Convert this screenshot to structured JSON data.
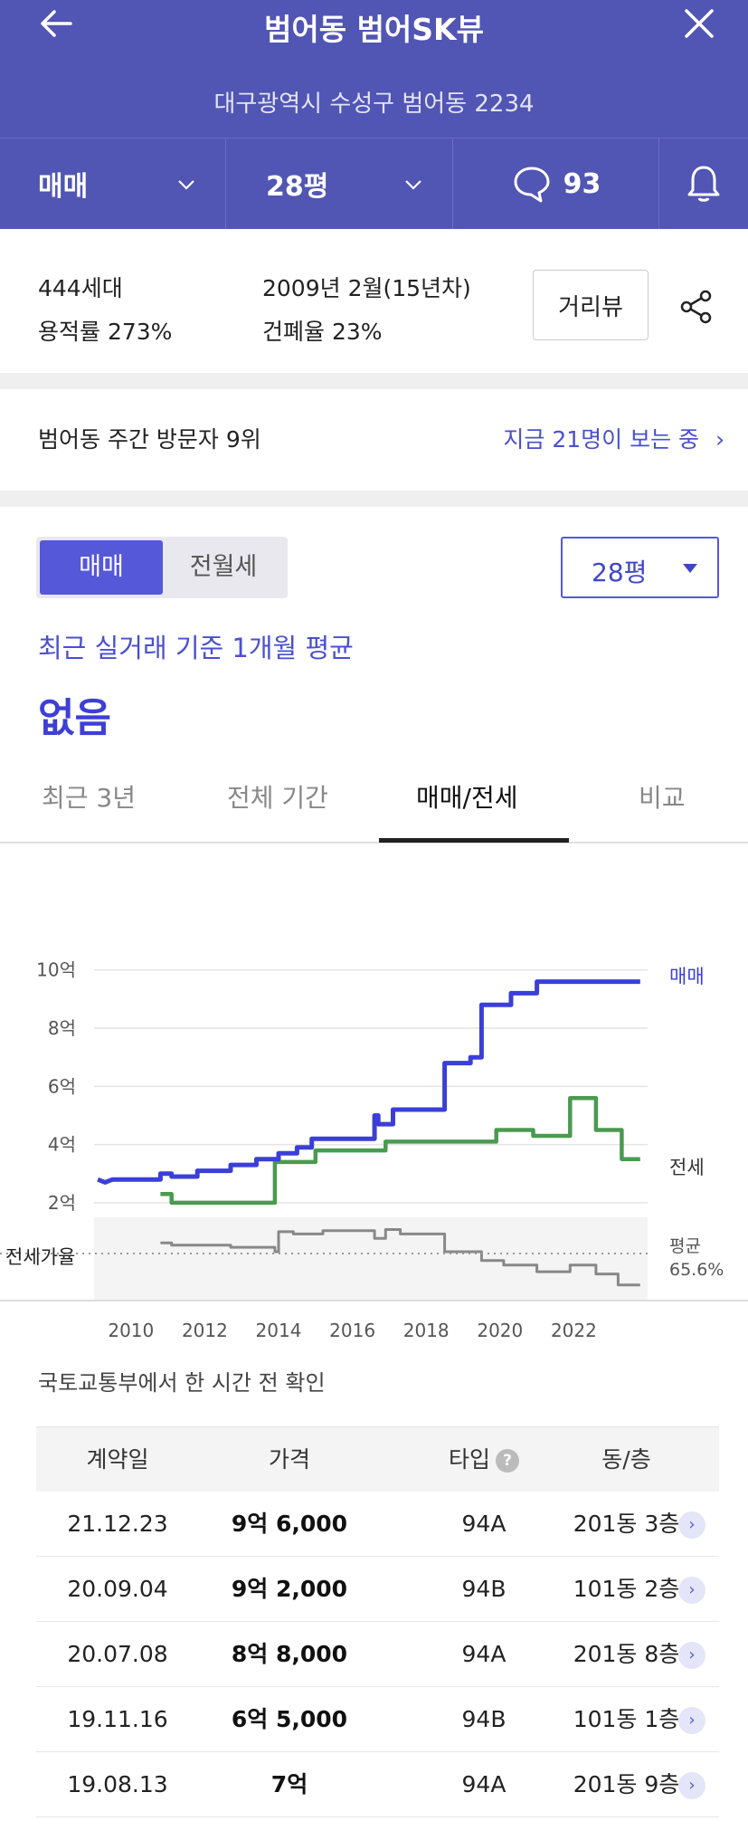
{
  "header": {
    "title": "범어동 범어SK뷰",
    "address": "대구광역시 수성구 범어동 2234",
    "deal_type": "매매",
    "size": "28평",
    "comment_count": "93"
  },
  "info": {
    "households": "444세대",
    "built": "2009년 2월(15년차)",
    "far": "용적률 273%",
    "bcr": "건폐율 23%",
    "street_view_label": "거리뷰"
  },
  "visitors": {
    "rank_text": "범어동 주간 방문자 9위",
    "viewing_text": "지금 21명이 보는 중",
    "arrow": "›"
  },
  "price_panel": {
    "toggle": [
      "매매",
      "전월세"
    ],
    "size_select": "28평",
    "subhead": "최근 실거래 기준 1개월 평균",
    "value": "없음"
  },
  "tabs": [
    "최근 3년",
    "전체 기간",
    "매매/전세",
    "비교"
  ],
  "chart_data": {
    "type": "line",
    "ylabels": [
      "10억",
      "8억",
      "6억",
      "4억",
      "2억"
    ],
    "yticks": [
      10,
      8,
      6,
      4,
      2
    ],
    "ylim": [
      1.5,
      10.8
    ],
    "xlabels": [
      "2010",
      "2012",
      "2014",
      "2016",
      "2018",
      "2020",
      "2022"
    ],
    "xticks": [
      2010,
      2012,
      2014,
      2016,
      2018,
      2020,
      2022
    ],
    "xlim": [
      2009.0,
      2024.0
    ],
    "series": [
      {
        "name": "매매",
        "color": "#3b3fd8",
        "points": [
          [
            2009.1,
            2.8
          ],
          [
            2009.3,
            2.7
          ],
          [
            2009.5,
            2.8
          ],
          [
            2010.8,
            2.8
          ],
          [
            2010.8,
            3.0
          ],
          [
            2011.1,
            3.0
          ],
          [
            2011.1,
            2.9
          ],
          [
            2011.8,
            2.9
          ],
          [
            2011.8,
            3.1
          ],
          [
            2012.7,
            3.1
          ],
          [
            2012.7,
            3.3
          ],
          [
            2013.4,
            3.3
          ],
          [
            2013.4,
            3.5
          ],
          [
            2014.0,
            3.5
          ],
          [
            2014.0,
            3.7
          ],
          [
            2014.5,
            3.7
          ],
          [
            2014.5,
            3.9
          ],
          [
            2014.9,
            3.9
          ],
          [
            2014.9,
            4.2
          ],
          [
            2016.6,
            4.2
          ],
          [
            2016.6,
            5.0
          ],
          [
            2016.7,
            5.0
          ],
          [
            2016.7,
            4.7
          ],
          [
            2017.1,
            4.7
          ],
          [
            2017.1,
            5.2
          ],
          [
            2018.5,
            5.2
          ],
          [
            2018.5,
            6.8
          ],
          [
            2019.2,
            6.8
          ],
          [
            2019.2,
            7.0
          ],
          [
            2019.5,
            7.0
          ],
          [
            2019.5,
            8.8
          ],
          [
            2020.3,
            8.8
          ],
          [
            2020.3,
            9.2
          ],
          [
            2021.0,
            9.2
          ],
          [
            2021.0,
            9.6
          ],
          [
            2023.8,
            9.6
          ]
        ]
      },
      {
        "name": "전세",
        "color": "#4a9a4f",
        "points": [
          [
            2010.8,
            2.3
          ],
          [
            2011.1,
            2.3
          ],
          [
            2011.1,
            2.0
          ],
          [
            2013.9,
            2.0
          ],
          [
            2013.9,
            3.4
          ],
          [
            2015.0,
            3.4
          ],
          [
            2015.0,
            3.8
          ],
          [
            2016.9,
            3.8
          ],
          [
            2016.9,
            4.1
          ],
          [
            2019.9,
            4.1
          ],
          [
            2019.9,
            4.5
          ],
          [
            2020.9,
            4.5
          ],
          [
            2020.9,
            4.3
          ],
          [
            2021.9,
            4.3
          ],
          [
            2021.9,
            5.6
          ],
          [
            2022.6,
            5.6
          ],
          [
            2022.6,
            4.5
          ],
          [
            2023.3,
            4.5
          ],
          [
            2023.3,
            3.5
          ],
          [
            2023.8,
            3.5
          ]
        ]
      }
    ],
    "ratio": {
      "label": "전세가율",
      "avg_label": "평균",
      "avg_value": "65.6%",
      "color": "#888888",
      "points": [
        [
          2010.8,
          72
        ],
        [
          2011.1,
          72
        ],
        [
          2011.1,
          70
        ],
        [
          2012.7,
          70
        ],
        [
          2012.7,
          68
        ],
        [
          2013.9,
          68
        ],
        [
          2013.9,
          64
        ],
        [
          2014.0,
          64
        ],
        [
          2014.0,
          82
        ],
        [
          2014.4,
          82
        ],
        [
          2014.4,
          80
        ],
        [
          2015.2,
          80
        ],
        [
          2015.2,
          83
        ],
        [
          2016.6,
          83
        ],
        [
          2016.6,
          76
        ],
        [
          2016.9,
          76
        ],
        [
          2016.9,
          84
        ],
        [
          2017.3,
          84
        ],
        [
          2017.3,
          80
        ],
        [
          2018.5,
          80
        ],
        [
          2018.5,
          64
        ],
        [
          2019.5,
          64
        ],
        [
          2019.5,
          56
        ],
        [
          2020.1,
          56
        ],
        [
          2020.1,
          52
        ],
        [
          2021.0,
          52
        ],
        [
          2021.0,
          46
        ],
        [
          2021.9,
          46
        ],
        [
          2021.9,
          52
        ],
        [
          2022.6,
          52
        ],
        [
          2022.6,
          44
        ],
        [
          2023.2,
          44
        ],
        [
          2023.2,
          34
        ],
        [
          2023.8,
          34
        ]
      ]
    }
  },
  "source_note": "국토교통부에서 한 시간 전 확인",
  "table": {
    "headers": [
      "계약일",
      "가격",
      "타입",
      "동/층"
    ],
    "help": "?",
    "rows": [
      {
        "date": "21.12.23",
        "price": "9억 6,000",
        "type": "94A",
        "unit": "201동 3층"
      },
      {
        "date": "20.09.04",
        "price": "9억 2,000",
        "type": "94B",
        "unit": "101동 2층"
      },
      {
        "date": "20.07.08",
        "price": "8억 8,000",
        "type": "94A",
        "unit": "201동 8층"
      },
      {
        "date": "19.11.16",
        "price": "6억 5,000",
        "type": "94B",
        "unit": "101동 1층"
      },
      {
        "date": "19.08.13",
        "price": "7억",
        "type": "94A",
        "unit": "201동 9층"
      }
    ],
    "row_arrow": "›"
  }
}
